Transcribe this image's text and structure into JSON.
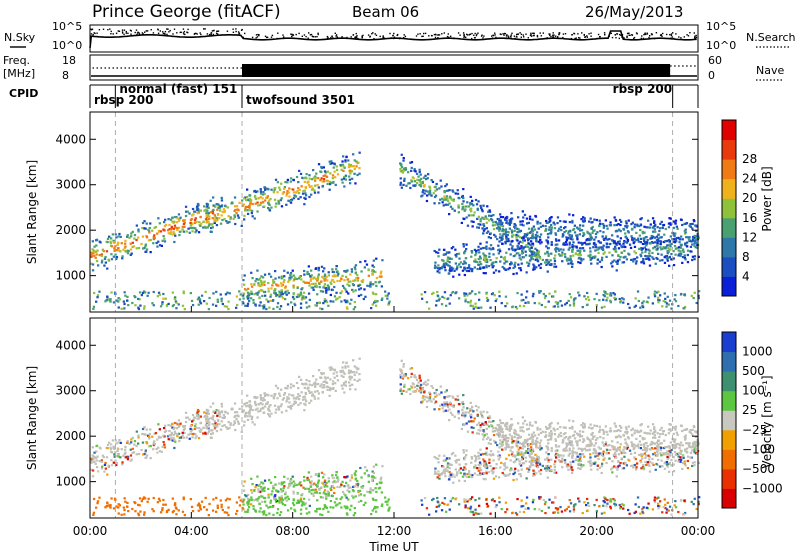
{
  "header": {
    "station": "Prince George (fitACF)",
    "beam": "Beam 06",
    "date": "26/May/2013"
  },
  "chart_data": [
    {
      "type": "line",
      "name": "sky-noise-search-noise",
      "left_label": "N.Sky",
      "right_label": "N.Search",
      "left_ticks": [
        "10^5",
        "10^0"
      ],
      "right_ticks": [
        "10^5",
        "10^0"
      ]
    },
    {
      "type": "line",
      "name": "frequency-nave",
      "left_label_lines": [
        "Freq.",
        "[MHz]"
      ],
      "right_label": "Nave",
      "left_ticks": [
        "18",
        "8"
      ],
      "right_ticks": [
        "60",
        "0"
      ],
      "nave_regime_change_hours": [
        6.0,
        22.9
      ]
    },
    {
      "type": "table",
      "name": "cpid",
      "label": "CPID",
      "segments": [
        {
          "label": "rbsp 200",
          "start": 0.0,
          "end": 1.0
        },
        {
          "label": "normal (fast) 151",
          "start": 1.0,
          "end": 6.0
        },
        {
          "label": "twofsound 3501",
          "start": 6.0,
          "end": 23.0
        },
        {
          "label": "rbsp 200",
          "start": 23.0,
          "end": 24.0
        }
      ]
    },
    {
      "type": "heatmap",
      "name": "power",
      "ylabel": "Slant Range [km]",
      "yticks": [
        1000,
        2000,
        3000,
        4000
      ],
      "ylim": [
        200,
        4600
      ],
      "xlim": [
        0,
        24
      ],
      "colorbar": {
        "label": "Power [dB]",
        "ticks": [
          4,
          8,
          12,
          16,
          20,
          24,
          28
        ],
        "colors": [
          "#0a1fd8",
          "#1b4ec0",
          "#2d78a8",
          "#4aa070",
          "#8fc23a",
          "#f0b21c",
          "#f07a14",
          "#e83a0c",
          "#e00000"
        ]
      }
    },
    {
      "type": "heatmap",
      "name": "velocity",
      "ylabel": "Slant Range [km]",
      "xlabel": "Time UT",
      "yticks": [
        1000,
        2000,
        3000,
        4000
      ],
      "ylim": [
        200,
        4600
      ],
      "xlim": [
        0,
        24
      ],
      "xticks": [
        "00:00",
        "04:00",
        "08:00",
        "12:00",
        "16:00",
        "20:00",
        "00:00"
      ],
      "colorbar": {
        "label": "Velocity [m s⁻¹]",
        "ticks": [
          "1000",
          "500",
          "100",
          "25",
          "−25",
          "−100",
          "−500",
          "−1000"
        ],
        "colors": [
          "#1a3ed0",
          "#2f6fb0",
          "#3f9070",
          "#5cc640",
          "#c8c8c0",
          "#f0a000",
          "#f06e00",
          "#e83000",
          "#d80000"
        ]
      },
      "ground_scatter_color": "#c0c0b8"
    }
  ],
  "bands": [
    {
      "name": "night-echo-band",
      "t0": 0.0,
      "t1": 5.0,
      "r0": 1400,
      "r1": 2400,
      "peak_db": 26
    },
    {
      "name": "rising-ground-scatter",
      "t0": 4.5,
      "t1": 10.6,
      "r0": 2200,
      "r1": 3400,
      "peak_db": 24
    },
    {
      "name": "near-range-band",
      "t0": 6.0,
      "t1": 11.5,
      "r0": 700,
      "r1": 1000,
      "peak_db": 22
    },
    {
      "name": "descending-afternoon-band",
      "t0": 12.2,
      "t1": 17.8,
      "r0": 3300,
      "r1": 1500,
      "peak_db": 16
    },
    {
      "name": "evening-band",
      "t0": 13.5,
      "t1": 24.0,
      "r0": 1300,
      "r1": 1600,
      "peak_db": 14
    },
    {
      "name": "far-evening-band",
      "t0": 16.0,
      "t1": 24.0,
      "r0": 2000,
      "r1": 1900,
      "peak_db": 12
    }
  ]
}
